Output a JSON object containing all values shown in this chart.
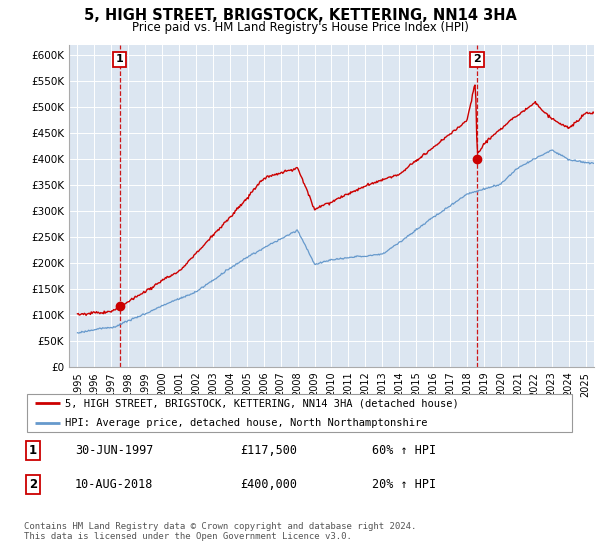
{
  "title": "5, HIGH STREET, BRIGSTOCK, KETTERING, NN14 3HA",
  "subtitle": "Price paid vs. HM Land Registry's House Price Index (HPI)",
  "ylabel_ticks": [
    "£0",
    "£50K",
    "£100K",
    "£150K",
    "£200K",
    "£250K",
    "£300K",
    "£350K",
    "£400K",
    "£450K",
    "£500K",
    "£550K",
    "£600K"
  ],
  "ylim": [
    0,
    620000
  ],
  "yticks": [
    0,
    50000,
    100000,
    150000,
    200000,
    250000,
    300000,
    350000,
    400000,
    450000,
    500000,
    550000,
    600000
  ],
  "xlim_start": 1994.5,
  "xlim_end": 2025.5,
  "bg_color": "#dce6f1",
  "red_color": "#cc0000",
  "blue_color": "#6699cc",
  "sale1_year": 1997.5,
  "sale1_price": 117500,
  "sale2_year": 2018.6,
  "sale2_price": 400000,
  "legend_label1": "5, HIGH STREET, BRIGSTOCK, KETTERING, NN14 3HA (detached house)",
  "legend_label2": "HPI: Average price, detached house, North Northamptonshire",
  "annotation1_date": "30-JUN-1997",
  "annotation1_price": "£117,500",
  "annotation1_pct": "60% ↑ HPI",
  "annotation2_date": "10-AUG-2018",
  "annotation2_price": "£400,000",
  "annotation2_pct": "20% ↑ HPI",
  "footer": "Contains HM Land Registry data © Crown copyright and database right 2024.\nThis data is licensed under the Open Government Licence v3.0."
}
